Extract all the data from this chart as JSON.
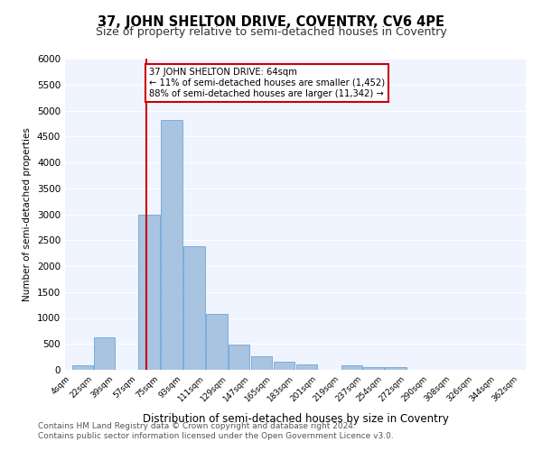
{
  "title": "37, JOHN SHELTON DRIVE, COVENTRY, CV6 4PE",
  "subtitle": "Size of property relative to semi-detached houses in Coventry",
  "xlabel": "Distribution of semi-detached houses by size in Coventry",
  "ylabel": "Number of semi-detached properties",
  "footer_line1": "Contains HM Land Registry data © Crown copyright and database right 2024.",
  "footer_line2": "Contains public sector information licensed under the Open Government Licence v3.0.",
  "annotation_line1": "37 JOHN SHELTON DRIVE: 64sqm",
  "annotation_line2": "← 11% of semi-detached houses are smaller (1,452)",
  "annotation_line3": "88% of semi-detached houses are larger (11,342) →",
  "property_line_x": 64,
  "bar_color": "#a8c4e0",
  "bar_edge_color": "#5b9bd5",
  "annotation_box_color": "#ffffff",
  "annotation_box_edge": "#cc0000",
  "property_line_color": "#cc0000",
  "background_color": "#f0f4ff",
  "ylim": [
    0,
    6000
  ],
  "yticks": [
    0,
    500,
    1000,
    1500,
    2000,
    2500,
    3000,
    3500,
    4000,
    4500,
    5000,
    5500,
    6000
  ],
  "bin_edges": [
    4,
    22,
    39,
    57,
    75,
    93,
    111,
    129,
    147,
    165,
    183,
    201,
    219,
    237,
    254,
    272,
    290,
    308,
    326,
    344,
    362
  ],
  "bin_labels": [
    "4sqm",
    "22sqm",
    "39sqm",
    "57sqm",
    "75sqm",
    "93sqm",
    "111sqm",
    "129sqm",
    "147sqm",
    "165sqm",
    "183sqm",
    "201sqm",
    "219sqm",
    "237sqm",
    "254sqm",
    "272sqm",
    "290sqm",
    "308sqm",
    "326sqm",
    "344sqm",
    "362sqm"
  ],
  "bar_heights": [
    80,
    620,
    0,
    3000,
    4820,
    2380,
    1080,
    480,
    260,
    160,
    100,
    0,
    80,
    60,
    60,
    0,
    0,
    0,
    0,
    0
  ]
}
